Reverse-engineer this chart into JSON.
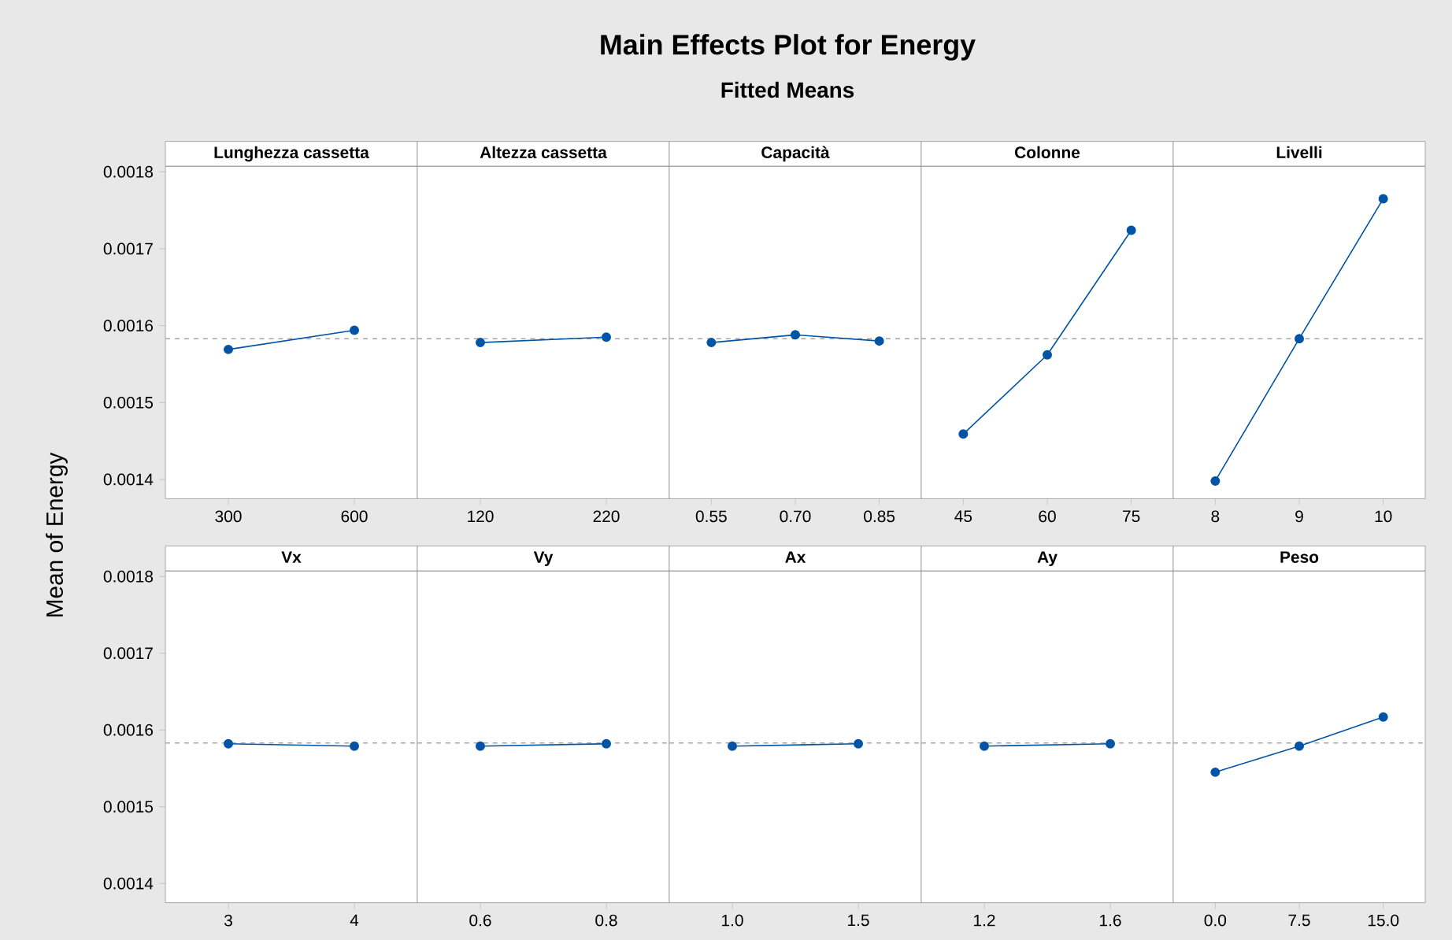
{
  "chart_data": [
    {
      "type": "line",
      "title": "Lunghezza cassetta",
      "annotations": [
        "Main Effects Plot for Energy",
        "Fitted Means"
      ],
      "ylabel": "Mean of Energy",
      "categories": [
        "300",
        "600"
      ],
      "values": [
        0.001569,
        0.001594
      ],
      "color": "#0054a6",
      "marker": "circle",
      "ylim": [
        0.001375,
        0.001807
      ],
      "yticks": [
        0.0014,
        0.0015,
        0.0016,
        0.0017,
        0.0018
      ],
      "ref_lines": [
        {
          "axis": "y",
          "value": 0.001583,
          "color": "#a6a6a6",
          "line_style": "dashed"
        }
      ]
    },
    {
      "type": "line",
      "title": "Altezza cassetta",
      "categories": [
        "120",
        "220"
      ],
      "values": [
        0.001578,
        0.001585
      ],
      "color": "#0054a6",
      "marker": "circle",
      "ylim": [
        0.001375,
        0.001807
      ],
      "tick_labels": "x",
      "ref_lines": [
        {
          "axis": "y",
          "value": 0.001583,
          "color": "#a6a6a6",
          "line_style": "dashed"
        }
      ]
    },
    {
      "type": "line",
      "title": "Capacità",
      "categories": [
        "0.55",
        "0.70",
        "0.85"
      ],
      "values": [
        0.001578,
        0.001588,
        0.00158
      ],
      "color": "#0054a6",
      "marker": "circle",
      "ylim": [
        0.001375,
        0.001807
      ],
      "tick_labels": "x",
      "ref_lines": [
        {
          "axis": "y",
          "value": 0.001583,
          "color": "#a6a6a6",
          "line_style": "dashed"
        }
      ]
    },
    {
      "type": "line",
      "title": "Colonne",
      "categories": [
        "45",
        "60",
        "75"
      ],
      "values": [
        0.001459,
        0.001562,
        0.001724
      ],
      "color": "#0054a6",
      "marker": "circle",
      "ylim": [
        0.001375,
        0.001807
      ],
      "tick_labels": "x",
      "ref_lines": [
        {
          "axis": "y",
          "value": 0.001583,
          "color": "#a6a6a6",
          "line_style": "dashed"
        }
      ]
    },
    {
      "type": "line",
      "title": "Livelli",
      "categories": [
        "8",
        "9",
        "10"
      ],
      "values": [
        0.001398,
        0.001583,
        0.001765
      ],
      "color": "#0054a6",
      "marker": "circle",
      "ylim": [
        0.001375,
        0.001807
      ],
      "tick_labels": "x",
      "ref_lines": [
        {
          "axis": "y",
          "value": 0.001583,
          "color": "#a6a6a6",
          "line_style": "dashed"
        }
      ]
    },
    {
      "type": "line",
      "title": "Vx",
      "categories": [
        "3",
        "4"
      ],
      "values": [
        0.001582,
        0.001579
      ],
      "color": "#0054a6",
      "marker": "circle",
      "ylim": [
        0.001375,
        0.001807
      ],
      "yticks": [
        0.0014,
        0.0015,
        0.0016,
        0.0017,
        0.0018
      ],
      "ref_lines": [
        {
          "axis": "y",
          "value": 0.001583,
          "color": "#a6a6a6",
          "line_style": "dashed"
        }
      ]
    },
    {
      "type": "line",
      "title": "Vy",
      "categories": [
        "0.6",
        "0.8"
      ],
      "values": [
        0.001579,
        0.001582
      ],
      "color": "#0054a6",
      "marker": "circle",
      "ylim": [
        0.001375,
        0.001807
      ],
      "tick_labels": "x",
      "ref_lines": [
        {
          "axis": "y",
          "value": 0.001583,
          "color": "#a6a6a6",
          "line_style": "dashed"
        }
      ]
    },
    {
      "type": "line",
      "title": "Ax",
      "categories": [
        "1.0",
        "1.5"
      ],
      "values": [
        0.001579,
        0.001582
      ],
      "color": "#0054a6",
      "marker": "circle",
      "ylim": [
        0.001375,
        0.001807
      ],
      "tick_labels": "x",
      "ref_lines": [
        {
          "axis": "y",
          "value": 0.001583,
          "color": "#a6a6a6",
          "line_style": "dashed"
        }
      ]
    },
    {
      "type": "line",
      "title": "Ay",
      "categories": [
        "1.2",
        "1.6"
      ],
      "values": [
        0.001579,
        0.001582
      ],
      "color": "#0054a6",
      "marker": "circle",
      "ylim": [
        0.001375,
        0.001807
      ],
      "tick_labels": "x",
      "ref_lines": [
        {
          "axis": "y",
          "value": 0.001583,
          "color": "#a6a6a6",
          "line_style": "dashed"
        }
      ]
    },
    {
      "type": "line",
      "title": "Peso",
      "categories": [
        "0.0",
        "7.5",
        "15.0"
      ],
      "values": [
        0.001545,
        0.001579,
        0.001617
      ],
      "color": "#0054a6",
      "marker": "circle",
      "ylim": [
        0.001375,
        0.001807
      ],
      "tick_labels": "x",
      "ref_lines": [
        {
          "axis": "y",
          "value": 0.001583,
          "color": "#a6a6a6",
          "line_style": "dashed"
        }
      ]
    }
  ]
}
